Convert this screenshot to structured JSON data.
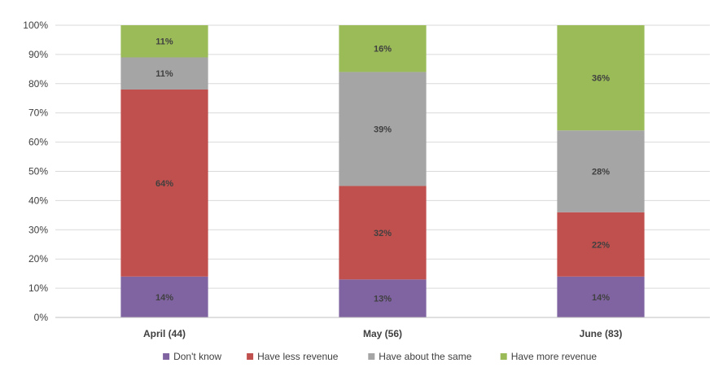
{
  "chart_data": {
    "type": "bar",
    "stacked": true,
    "percent_stacked": true,
    "categories": [
      "April (44)",
      "May (56)",
      "June (83)"
    ],
    "series": [
      {
        "name": "Don't know",
        "color": "#8064A2",
        "values": [
          14,
          13,
          14
        ]
      },
      {
        "name": "Have less revenue",
        "color": "#C0504D",
        "values": [
          64,
          32,
          22
        ]
      },
      {
        "name": "Have about the same",
        "color": "#A5A5A5",
        "values": [
          11,
          39,
          28
        ]
      },
      {
        "name": "Have more revenue",
        "color": "#9BBB59",
        "values": [
          11,
          16,
          36
        ]
      }
    ],
    "ylim": [
      0,
      100
    ],
    "yticks": [
      "0%",
      "10%",
      "20%",
      "30%",
      "40%",
      "50%",
      "60%",
      "70%",
      "80%",
      "90%",
      "100%"
    ],
    "grid": true,
    "legend_position": "bottom",
    "data_label_suffix": "%"
  }
}
